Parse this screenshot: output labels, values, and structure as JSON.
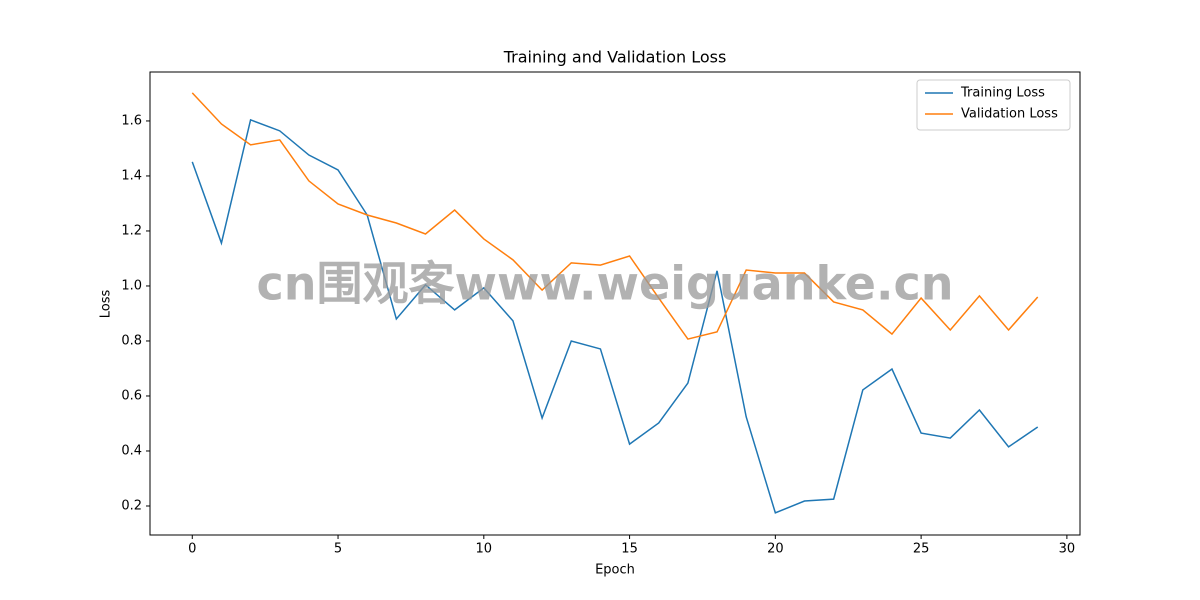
{
  "chart_data": {
    "type": "line",
    "title": "Training and Validation Loss",
    "xlabel": "Epoch",
    "ylabel": "Loss",
    "watermark": "cn围观客www.weiguanke.cn",
    "x": [
      0,
      1,
      2,
      3,
      4,
      5,
      6,
      7,
      8,
      9,
      10,
      11,
      12,
      13,
      14,
      15,
      16,
      17,
      18,
      19,
      20,
      21,
      22,
      23,
      24,
      25,
      26,
      27,
      28,
      29
    ],
    "series": [
      {
        "name": "Training Loss",
        "color": "#1f77b4",
        "values": [
          1.451,
          1.156,
          1.604,
          1.564,
          1.476,
          1.422,
          1.258,
          0.88,
          1.004,
          0.913,
          0.993,
          0.873,
          0.52,
          0.8,
          0.771,
          0.425,
          0.502,
          0.647,
          1.055,
          0.524,
          0.175,
          0.218,
          0.225,
          0.622,
          0.698,
          0.465,
          0.447,
          0.549,
          0.415,
          0.487
        ]
      },
      {
        "name": "Validation Loss",
        "color": "#ff7f0e",
        "values": [
          1.702,
          1.589,
          1.513,
          1.531,
          1.382,
          1.298,
          1.258,
          1.229,
          1.189,
          1.276,
          1.171,
          1.095,
          0.985,
          1.084,
          1.076,
          1.109,
          0.956,
          0.807,
          0.833,
          1.058,
          1.047,
          1.047,
          0.942,
          0.913,
          0.825,
          0.956,
          0.84,
          0.964,
          0.84,
          0.96
        ]
      }
    ],
    "xlim": [
      -1.45,
      30.45
    ],
    "ylim": [
      0.0945,
      1.778
    ],
    "xticks": [
      0,
      5,
      10,
      15,
      20,
      25,
      30
    ],
    "yticks": [
      0.2,
      0.4,
      0.6,
      0.8,
      {
        "value": 1.0,
        "label": "1.0"
      },
      1.2,
      1.4,
      1.6
    ],
    "legend": "upper-right",
    "grid": false
  }
}
